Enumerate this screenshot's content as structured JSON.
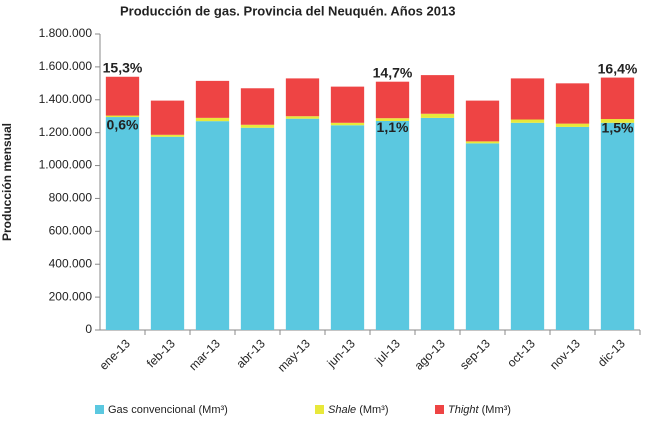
{
  "chart_data": {
    "type": "stacked_bar",
    "title": "Producción de gas. Provincia del Neuquén. Años 2013",
    "y_label": "Producción mensual",
    "categories": [
      "ene-13",
      "feb-13",
      "mar-13",
      "abr-13",
      "may-13",
      "jun-13",
      "jul-13",
      "ago-13",
      "sep-13",
      "oct-13",
      "nov-13",
      "dic-13"
    ],
    "series": [
      {
        "name": "Gas convencional (Mm³)",
        "color": "#5bc8e0",
        "values": [
          1295000,
          1175000,
          1270000,
          1230000,
          1285000,
          1245000,
          1271000,
          1290000,
          1135000,
          1260000,
          1235000,
          1260000
        ]
      },
      {
        "name": "Shale (Mm³)",
        "color": "#e8e83a",
        "values": [
          9000,
          12000,
          20000,
          18000,
          15000,
          15000,
          17000,
          25000,
          12000,
          20000,
          20000,
          23000
        ]
      },
      {
        "name": "Thight (Mm³)",
        "color": "#ee4444",
        "values": [
          236000,
          208000,
          225000,
          222000,
          230000,
          220000,
          222000,
          235000,
          248000,
          250000,
          245000,
          252000
        ]
      }
    ],
    "ylim": [
      0,
      1800000
    ],
    "yticks": [
      0,
      {
        "value": 200000,
        "label": "200.000"
      },
      {
        "value": 400000,
        "label": "400.000"
      },
      {
        "value": 600000,
        "label": "600.000"
      },
      {
        "value": 800000,
        "label": "800.000"
      },
      {
        "value": 1000000,
        "label": "1.000.000"
      },
      {
        "value": 1200000,
        "label": "1.200.000"
      },
      {
        "value": 1400000,
        "label": "1.400.000"
      },
      {
        "value": 1600000,
        "label": "1.600.000"
      },
      {
        "value": 1800000,
        "label": "1.800.000"
      }
    ],
    "annotations": [
      {
        "text": "15,3%"
      },
      {
        "text": "0,6%"
      },
      {
        "text": "14,7%"
      },
      {
        "text": "1,1%"
      },
      {
        "text": "16,4%"
      },
      {
        "text": "1,5%"
      }
    ],
    "legend": "bottom"
  }
}
